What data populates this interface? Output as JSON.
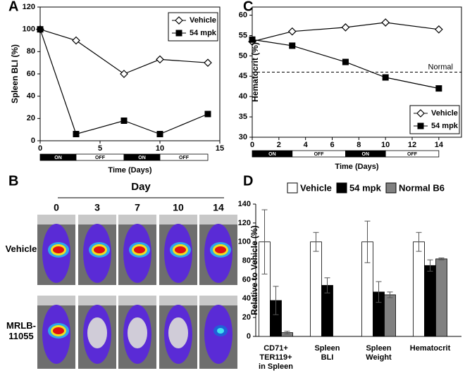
{
  "chart_data": [
    {
      "type": "line",
      "panel": "A",
      "y_label": "Spleen BLI (%)",
      "x_label": "Time (Days)",
      "x": [
        0,
        3,
        7,
        10,
        14
      ],
      "xlim": [
        0,
        15
      ],
      "xticks": [
        0,
        5,
        10,
        15
      ],
      "ylim": [
        0,
        120
      ],
      "yticks": [
        0,
        20,
        40,
        60,
        80,
        100,
        120
      ],
      "grid": false,
      "series": [
        {
          "name": "Vehicle",
          "color": "#000000",
          "marker": "diamond",
          "values": [
            100,
            90,
            60,
            73,
            70
          ]
        },
        {
          "name": "54 mpk",
          "color": "#000000",
          "marker": "square",
          "values": [
            100,
            6,
            18,
            6,
            24
          ]
        }
      ],
      "legend": "upper right",
      "schedule": [
        {
          "label": "ON",
          "start": 0,
          "end": 3
        },
        {
          "label": "OFF",
          "start": 3,
          "end": 7
        },
        {
          "label": "ON",
          "start": 7,
          "end": 10
        },
        {
          "label": "OFF",
          "start": 10,
          "end": 14
        }
      ]
    },
    {
      "type": "line",
      "panel": "C",
      "y_label": "Hematocrit (%)",
      "x_label": "Time (Days)",
      "x": [
        0,
        3,
        7,
        10,
        14
      ],
      "xlim": [
        0,
        15.7
      ],
      "xticks": [
        0,
        2,
        4,
        6,
        8,
        10,
        12,
        14
      ],
      "ylim": [
        30,
        62
      ],
      "yticks": [
        30,
        35,
        40,
        45,
        50,
        55,
        60
      ],
      "grid": false,
      "series": [
        {
          "name": "Vehicle",
          "color": "#000000",
          "marker": "diamond",
          "values": [
            53.5,
            56,
            57,
            58.2,
            56.5
          ]
        },
        {
          "name": "54 mpk",
          "color": "#000000",
          "marker": "square",
          "values": [
            54,
            52.5,
            48.5,
            44.7,
            42
          ]
        }
      ],
      "legend": "lower right",
      "ref_line": {
        "value": 46,
        "label": "Normal"
      },
      "schedule": [
        {
          "label": "ON",
          "start": 0,
          "end": 3
        },
        {
          "label": "OFF",
          "start": 3,
          "end": 7
        },
        {
          "label": "ON",
          "start": 7,
          "end": 10
        },
        {
          "label": "OFF",
          "start": 10,
          "end": 14
        }
      ]
    },
    {
      "type": "bar",
      "panel": "D",
      "y_label": "Relative to Vehicle (%)",
      "categories": [
        "CD71+\nTER119+\nin Spleen",
        "Spleen\nBLI",
        "Spleen\nWeight",
        "Hematocrit"
      ],
      "ylim": [
        0,
        140
      ],
      "yticks": [
        0,
        20,
        40,
        60,
        80,
        100,
        120,
        140
      ],
      "grid": false,
      "series": [
        {
          "name": "Vehicle",
          "color": "#ffffff",
          "values": [
            100,
            100,
            100,
            100
          ],
          "errors": [
            34,
            10,
            22,
            10
          ]
        },
        {
          "name": "54 mpk",
          "color": "#000000",
          "values": [
            38,
            54,
            47,
            75
          ],
          "errors": [
            15,
            8,
            11,
            6
          ]
        },
        {
          "name": "Normal B6",
          "color": "#808080",
          "values": [
            4,
            null,
            44,
            82
          ],
          "errors": [
            1.5,
            null,
            3,
            1
          ]
        }
      ],
      "legend": "top"
    }
  ],
  "imaging_panel": {
    "panel": "B",
    "title": "Day",
    "days": [
      "0",
      "3",
      "7",
      "10",
      "14"
    ],
    "rows": [
      "Vehicle",
      "MRLB-\n11055"
    ]
  }
}
